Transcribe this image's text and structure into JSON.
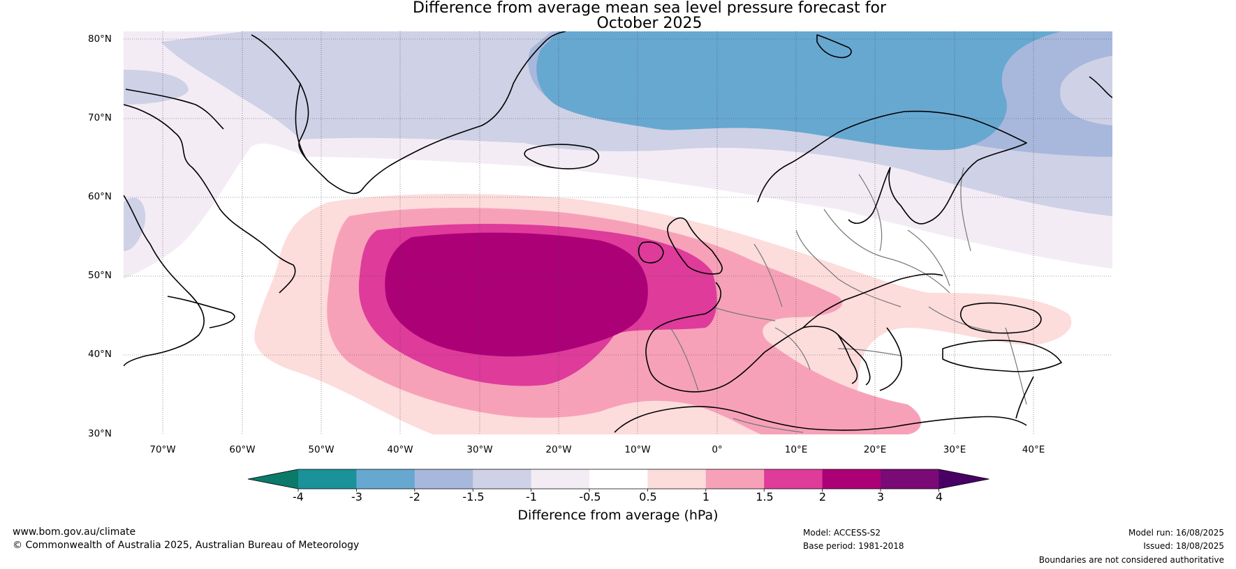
{
  "title": {
    "line1": "Difference from average mean sea level pressure forecast for",
    "line2": "October 2025"
  },
  "map": {
    "lon_range": [
      -75,
      50
    ],
    "lat_range": [
      30,
      80
    ],
    "lat_labels": [
      "30°N",
      "40°N",
      "50°N",
      "60°N",
      "70°N",
      "80°N"
    ],
    "lon_labels": [
      "70°W",
      "60°W",
      "50°W",
      "40°W",
      "30°W",
      "20°W",
      "10°W",
      "0°",
      "10°E",
      "20°E",
      "30°E",
      "40°E"
    ],
    "features": [
      "pressure-anomaly-fill",
      "coastlines",
      "country-boundaries",
      "graticule"
    ]
  },
  "colorbar": {
    "title": "Difference from average (hPa)",
    "ticks": [
      "-4",
      "-3",
      "-2",
      "-1.5",
      "-1",
      "-0.5",
      "0.5",
      "1",
      "1.5",
      "2",
      "3",
      "4"
    ],
    "colors": [
      "#0b7a6a",
      "#1b9199",
      "#67a8d1",
      "#a7b8dc",
      "#cfd1e6",
      "#f3ecf5",
      "#ffffff",
      "#fddcdc",
      "#f7a1b9",
      "#de3b9b",
      "#ac0077",
      "#7a0a76",
      "#490065"
    ]
  },
  "footer": {
    "url": "www.bom.gov.au/climate",
    "copyright": "© Commonwealth of Australia 2025, Australian Bureau of Meteorology",
    "model": "Model: ACCESS-S2",
    "base_period": "Base period: 1981-2018",
    "model_run": "Model run: 16/08/2025",
    "issued": "Issued: 18/08/2025",
    "disclaimer": "Boundaries are not considered authoritative"
  }
}
